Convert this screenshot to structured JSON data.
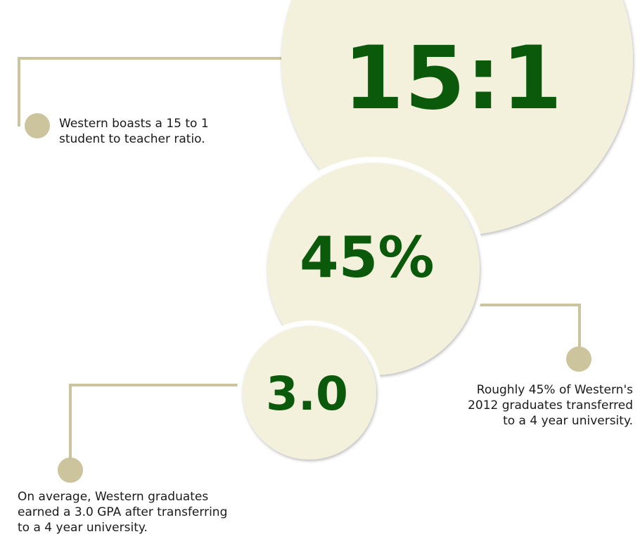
{
  "colors": {
    "circle_fill": "#f3f0dc",
    "connector": "#ccc49d",
    "stat_text": "#0b5a0b",
    "caption_text": "#1a1a1a"
  },
  "stats": [
    {
      "value": "15:1",
      "caption_lines": [
        "Western boasts a 15 to 1",
        "student to teacher ratio."
      ]
    },
    {
      "value": "45%",
      "caption_lines": [
        "Roughly 45% of Western's",
        "2012 graduates transferred",
        "to a 4 year university."
      ]
    },
    {
      "value": "3.0",
      "caption_lines": [
        "On average, Western graduates",
        "earned a 3.0 GPA after transferring",
        "to a 4 year university."
      ]
    }
  ]
}
